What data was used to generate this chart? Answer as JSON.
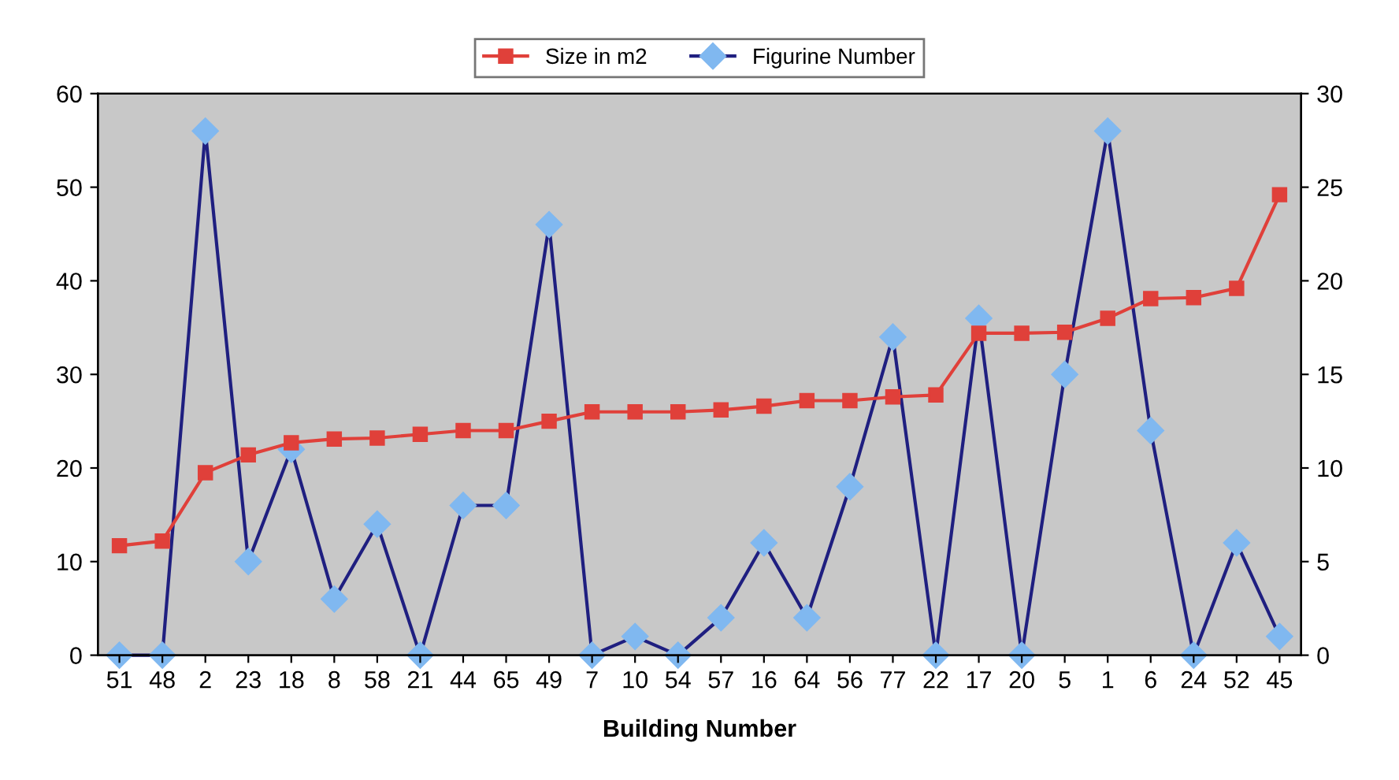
{
  "chart_data": {
    "type": "line",
    "xlabel": "Building Number",
    "categories": [
      "51",
      "48",
      "2",
      "23",
      "18",
      "8",
      "58",
      "21",
      "44",
      "65",
      "49",
      "7",
      "10",
      "54",
      "57",
      "16",
      "64",
      "56",
      "77",
      "22",
      "17",
      "20",
      "5",
      "1",
      "6",
      "24",
      "52",
      "45"
    ],
    "series": [
      {
        "name": "Size in m2",
        "color": "#e0403a",
        "marker": "square",
        "values": [
          11.7,
          12.2,
          19.5,
          21.4,
          22.7,
          23.1,
          23.2,
          23.6,
          24.0,
          24.0,
          25.0,
          26.0,
          26.0,
          26.0,
          26.2,
          26.6,
          27.2,
          27.2,
          27.6,
          27.8,
          34.4,
          34.4,
          34.5,
          36.0,
          38.1,
          38.2,
          39.2,
          49.2
        ]
      },
      {
        "name": "Figurine Number",
        "color": "#1f1f80",
        "marker": "diamond",
        "axis": "y2",
        "values": [
          0,
          0,
          28,
          5,
          11,
          3,
          7,
          0,
          8,
          8,
          23,
          0,
          1,
          0,
          2,
          6,
          2,
          9,
          17,
          0,
          18,
          0,
          15,
          28,
          12,
          0,
          6,
          1
        ]
      }
    ],
    "ylim": [
      0,
      60
    ],
    "yticks": [
      0,
      10,
      20,
      30,
      40,
      50,
      60
    ],
    "y2lim": [
      0,
      30
    ],
    "y2ticks": [
      0,
      5,
      10,
      15,
      20,
      25,
      30
    ],
    "grid": false,
    "legend": "top"
  }
}
